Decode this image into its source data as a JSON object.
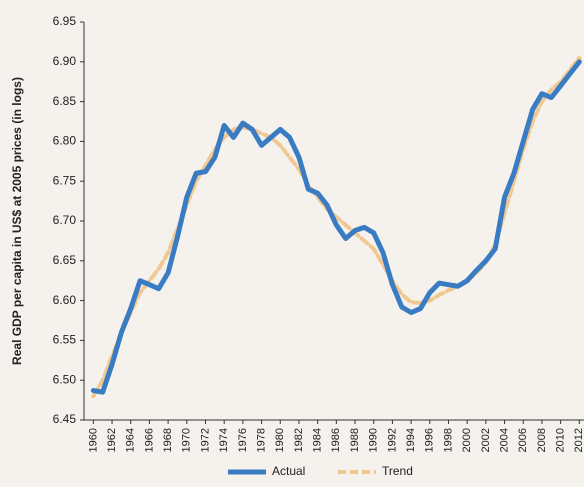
{
  "chart_data": {
    "type": "line",
    "y_label": "Real GDP per capita in US$ at 2005 prices (in logs)",
    "x": [
      1960,
      1961,
      1962,
      1963,
      1964,
      1965,
      1966,
      1967,
      1968,
      1969,
      1970,
      1971,
      1972,
      1973,
      1974,
      1975,
      1976,
      1977,
      1978,
      1979,
      1980,
      1981,
      1982,
      1983,
      1984,
      1985,
      1986,
      1987,
      1988,
      1989,
      1990,
      1991,
      1992,
      1993,
      1994,
      1995,
      1996,
      1997,
      1998,
      1999,
      2000,
      2001,
      2002,
      2003,
      2004,
      2005,
      2006,
      2007,
      2008,
      2009,
      2010,
      2011,
      2012
    ],
    "series": [
      {
        "name": "Actual",
        "color": "#3a7cc3",
        "dashed": false,
        "values": [
          6.487,
          6.485,
          6.52,
          6.56,
          6.59,
          6.625,
          6.62,
          6.615,
          6.635,
          6.68,
          6.73,
          6.76,
          6.762,
          6.78,
          6.82,
          6.805,
          6.823,
          6.815,
          6.795,
          6.805,
          6.815,
          6.805,
          6.78,
          6.74,
          6.735,
          6.72,
          6.695,
          6.678,
          6.688,
          6.692,
          6.685,
          6.66,
          6.62,
          6.592,
          6.585,
          6.59,
          6.61,
          6.622,
          6.62,
          6.618,
          6.625,
          6.638,
          6.65,
          6.665,
          6.73,
          6.76,
          6.8,
          6.84,
          6.86,
          6.855,
          6.87,
          6.885,
          6.9
        ]
      },
      {
        "name": "Trend",
        "color": "#f0c890",
        "dashed": true,
        "values": [
          6.48,
          6.5,
          6.53,
          6.56,
          6.585,
          6.61,
          6.625,
          6.64,
          6.66,
          6.69,
          6.72,
          6.75,
          6.77,
          6.79,
          6.805,
          6.815,
          6.818,
          6.815,
          6.81,
          6.805,
          6.795,
          6.78,
          6.765,
          6.745,
          6.73,
          6.715,
          6.705,
          6.695,
          6.685,
          6.675,
          6.665,
          6.645,
          6.625,
          6.608,
          6.598,
          6.597,
          6.6,
          6.607,
          6.613,
          6.618,
          6.625,
          6.635,
          6.648,
          6.67,
          6.71,
          6.75,
          6.79,
          6.825,
          6.85,
          6.865,
          6.875,
          6.89,
          6.905
        ]
      }
    ],
    "xlim": [
      1959,
      2012.5
    ],
    "xticks": [
      1960,
      1962,
      1964,
      1966,
      1968,
      1970,
      1972,
      1974,
      1976,
      1978,
      1980,
      1982,
      1984,
      1986,
      1988,
      1990,
      1992,
      1994,
      1996,
      1998,
      2000,
      2002,
      2004,
      2006,
      2008,
      2010,
      2012
    ],
    "ylim": [
      6.45,
      6.95
    ],
    "yticks": [
      6.45,
      {
        "value": 6.5,
        "label": "6.50"
      },
      6.55,
      {
        "value": 6.6,
        "label": "6.60"
      },
      6.65,
      {
        "value": 6.7,
        "label": "6.70"
      },
      6.75,
      {
        "value": 6.8,
        "label": "6.80"
      },
      6.85,
      {
        "value": 6.9,
        "label": "6.90"
      },
      6.95
    ],
    "grid": false,
    "legend": "bottom"
  }
}
